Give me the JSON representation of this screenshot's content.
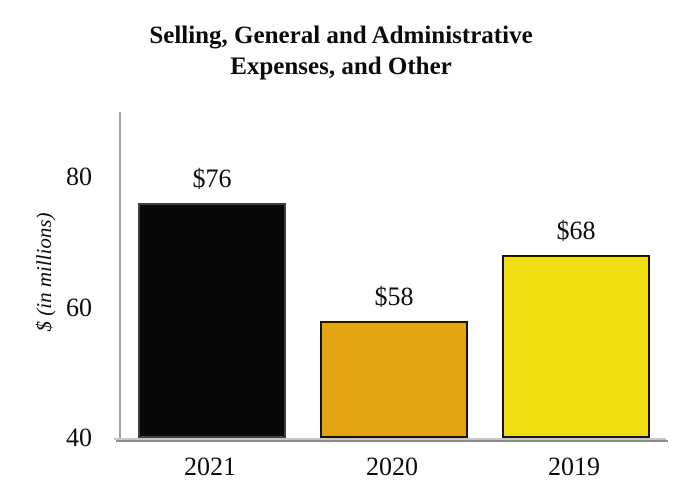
{
  "chart_data": {
    "type": "bar",
    "title": "Selling, General and Administrative Expenses, and Other",
    "ylabel": "$ (in millions)",
    "xlabel": "",
    "categories": [
      "2021",
      "2020",
      "2019"
    ],
    "values": [
      76,
      58,
      68
    ],
    "data_labels": [
      "$76",
      "$58",
      "$68"
    ],
    "bar_colors": [
      "#070707",
      "#e2a511",
      "#eede12"
    ],
    "bar_border_colors": [
      "#3f3f3f",
      "#1a1408",
      "#1a1408"
    ],
    "ylim": [
      40,
      90
    ],
    "yticks": [
      80,
      60,
      40
    ],
    "grid": false,
    "legend": "none",
    "axis_line_color": "#a0a0a0",
    "axis_shadow_color": "#8a8a8a",
    "text_color": "#0c0c0c",
    "background": "#ffffff"
  }
}
